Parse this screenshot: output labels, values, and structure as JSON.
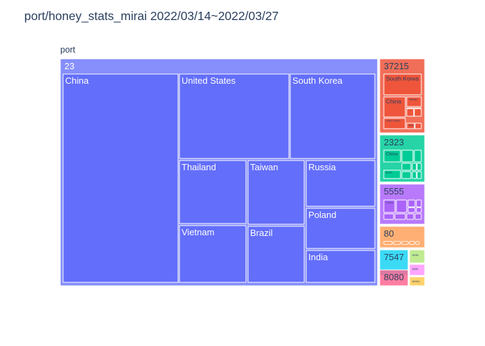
{
  "chart_data": {
    "type": "treemap",
    "title": "port/honey_stats_mirai 2022/03/14~2022/03/27",
    "root_label": "port",
    "colors": {
      "23": "#636efa",
      "37215": "#ef553b",
      "2323": "#00cc96",
      "5555": "#ab63fa",
      "80": "#ffa15a",
      "7547": "#19d3f3",
      "8080": "#ff6692",
      "9530": "#b6e880",
      "8081": "#ff97ff",
      "60001": "#fecb52"
    },
    "ports": [
      {
        "label": "23",
        "countries": [
          {
            "label": "China"
          },
          {
            "label": "United States"
          },
          {
            "label": "South Korea"
          },
          {
            "label": "Thailand"
          },
          {
            "label": "Vietnam"
          },
          {
            "label": "Taiwan"
          },
          {
            "label": "Brazil"
          },
          {
            "label": "Russia"
          },
          {
            "label": "Poland"
          },
          {
            "label": "India"
          }
        ]
      },
      {
        "label": "37215",
        "countries": [
          {
            "label": "South Korea"
          },
          {
            "label": "China"
          },
          {
            "label": "Taiwan"
          },
          {
            "label": "United States"
          },
          {
            "label": "Brazil"
          }
        ]
      },
      {
        "label": "2323",
        "countries": [
          {
            "label": "China"
          },
          {
            "label": "Brazil"
          }
        ]
      },
      {
        "label": "5555",
        "countries": [
          {
            "label": "China"
          }
        ]
      },
      {
        "label": "80",
        "countries": []
      },
      {
        "label": "7547",
        "countries": []
      },
      {
        "label": "8080",
        "countries": []
      },
      {
        "label": "9530",
        "countries": []
      },
      {
        "label": "8081",
        "countries": []
      },
      {
        "label": "60001",
        "countries": []
      }
    ]
  }
}
